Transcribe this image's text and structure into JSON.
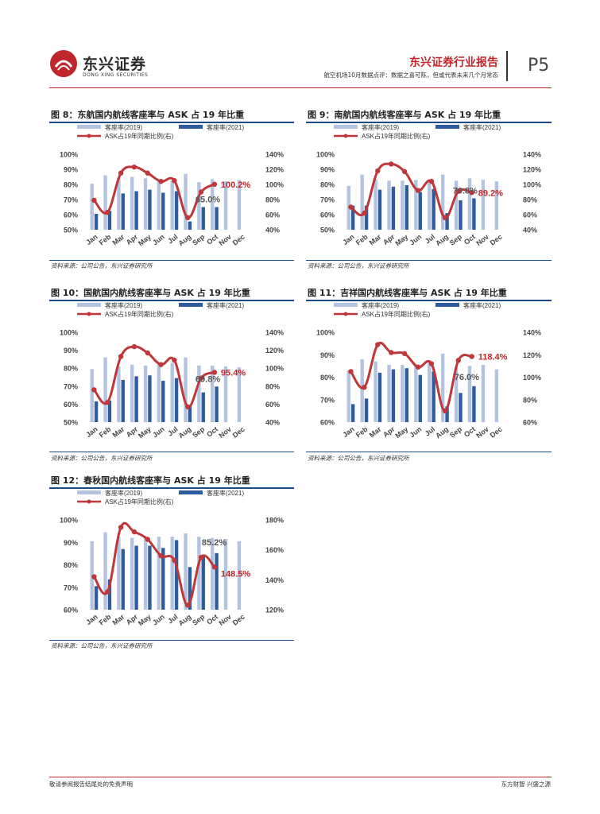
{
  "header": {
    "logo_text": "东兴证券",
    "logo_sub": "DONG XING SECURITIES",
    "report_title": "东兴证券行业报告",
    "report_sub": "航空机场10月数据点评：数据之喜可陈，但或代表未来几个月常态",
    "page": "P5"
  },
  "footer": {
    "left": "敬请参阅报告结尾处的免责声明",
    "right": "东方财智  兴盛之源"
  },
  "colors": {
    "light_bar": "#b4c3df",
    "dark_bar": "#2e5c9f",
    "line": "#c0373a",
    "brand_red": "#c0272d"
  },
  "legend": {
    "s2019": "客座率(2019)",
    "s2021": "客座率(2021)",
    "ratio": "ASK占19年同期比例(右)"
  },
  "months": [
    "Jan",
    "Feb",
    "Mar",
    "Apr",
    "May",
    "Jun",
    "Jul",
    "Aug",
    "Sep",
    "Oct",
    "Nov",
    "Dec"
  ],
  "figures": [
    {
      "title": "图 8：东航国内航线客座率与 ASK 占 19 年比重",
      "source": "资料来源：公司公告，东兴证券研究所"
    },
    {
      "title": "图 9：南航国内航线客座率与 ASK 占 19 年比重",
      "source": "资料来源：公司公告，东兴证券研究所"
    },
    {
      "title": "图 10：国航国内航线客座率与 ASK 占 19 年比重",
      "source": "资料来源：公司公告，东兴证券研究所"
    },
    {
      "title": "图 11：吉祥国内航线客座率与 ASK 占 19 年比重",
      "source": "资料来源：公司公告，东兴证券研究所"
    },
    {
      "title": "图 12：春秋国内航线客座率与 ASK 占 19 年比重",
      "source": "资料来源：公司公告，东兴证券研究所"
    }
  ],
  "chart_data": [
    {
      "type": "bar",
      "title": "图 8：东航国内航线客座率与 ASK 占 19 年比重",
      "categories": [
        "Jan",
        "Feb",
        "Mar",
        "Apr",
        "May",
        "Jun",
        "Jul",
        "Aug",
        "Sep",
        "Oct",
        "Nov",
        "Dec"
      ],
      "series": [
        {
          "name": "客座率(2019)",
          "values": [
            80.5,
            86,
            84.5,
            85,
            84,
            82,
            82.5,
            87,
            81.5,
            83.5,
            82,
            83
          ]
        },
        {
          "name": "客座率(2021)",
          "values": [
            60.5,
            62.5,
            74,
            75.5,
            76.5,
            74.5,
            75.5,
            55.5,
            65,
            65,
            null,
            null
          ]
        },
        {
          "name": "ASK占19年同期比例(右)",
          "axis": "right",
          "type": "line",
          "values": [
            79,
            63,
            115,
            123,
            115,
            104,
            105,
            56,
            90,
            100.2,
            null,
            null
          ]
        }
      ],
      "ylim": [
        50,
        100
      ],
      "y2lim": [
        40,
        140
      ],
      "yticks": [
        "50%",
        "60%",
        "70%",
        "80%",
        "90%",
        "100%"
      ],
      "y2ticks": [
        "40%",
        "60%",
        "80%",
        "100%",
        "120%",
        "140%"
      ],
      "labels": {
        "line_last": "100.2%",
        "bar_last": "65.0%"
      }
    },
    {
      "type": "bar",
      "title": "图 9：南航国内航线客座率与 ASK 占 19 年比重",
      "categories": [
        "Jan",
        "Feb",
        "Mar",
        "Apr",
        "May",
        "Jun",
        "Jul",
        "Aug",
        "Sep",
        "Oct",
        "Nov",
        "Dec"
      ],
      "series": [
        {
          "name": "客座率(2019)",
          "values": [
            79,
            86.5,
            83.5,
            82.5,
            82.5,
            83,
            83,
            86.5,
            82.5,
            84,
            83,
            82
          ]
        },
        {
          "name": "客座率(2021)",
          "values": [
            66,
            66,
            76.5,
            78.5,
            79.5,
            75,
            77,
            61,
            69.5,
            70.8,
            null,
            null
          ]
        },
        {
          "name": "ASK占19年同期比例(右)",
          "axis": "right",
          "type": "line",
          "values": [
            70,
            62,
            118,
            127,
            117,
            92,
            104,
            56,
            91,
            89.2,
            null,
            null
          ]
        }
      ],
      "ylim": [
        50,
        100
      ],
      "y2lim": [
        40,
        140
      ],
      "yticks": [
        "50%",
        "60%",
        "70%",
        "80%",
        "90%",
        "100%"
      ],
      "y2ticks": [
        "40%",
        "60%",
        "80%",
        "100%",
        "120%",
        "140%"
      ],
      "labels": {
        "line_last": "89.2%",
        "bar_last": "70.8%"
      }
    },
    {
      "type": "bar",
      "title": "图 10：国航国内航线客座率与 ASK 占 19 年比重",
      "categories": [
        "Jan",
        "Feb",
        "Mar",
        "Apr",
        "May",
        "Jun",
        "Jul",
        "Aug",
        "Sep",
        "Oct",
        "Nov",
        "Dec"
      ],
      "series": [
        {
          "name": "客座率(2019)",
          "values": [
            79.5,
            86,
            81,
            82,
            81.5,
            82,
            83,
            86,
            81.5,
            81.5,
            81,
            80.5
          ]
        },
        {
          "name": "客座率(2021)",
          "values": [
            61.5,
            62,
            73.5,
            75.5,
            76,
            73,
            74.5,
            59.5,
            66.5,
            69.8,
            null,
            null
          ]
        },
        {
          "name": "ASK占19年同期比例(右)",
          "axis": "right",
          "type": "line",
          "values": [
            76,
            62,
            113,
            124,
            117,
            104,
            109,
            57,
            89,
            95.4,
            null,
            null
          ]
        }
      ],
      "ylim": [
        50,
        100
      ],
      "y2lim": [
        40,
        140
      ],
      "yticks": [
        "50%",
        "60%",
        "70%",
        "80%",
        "90%",
        "100%"
      ],
      "y2ticks": [
        "40%",
        "60%",
        "80%",
        "100%",
        "120%",
        "140%"
      ],
      "labels": {
        "line_last": "95.4%",
        "bar_last": "69.8%"
      }
    },
    {
      "type": "bar",
      "title": "图 11：吉祥国内航线客座率与 ASK 占 19 年比重",
      "categories": [
        "Jan",
        "Feb",
        "Mar",
        "Apr",
        "May",
        "Jun",
        "Jul",
        "Aug",
        "Sep",
        "Oct",
        "Nov",
        "Dec"
      ],
      "series": [
        {
          "name": "客座率(2019)",
          "values": [
            83,
            88,
            87,
            85.5,
            85.5,
            85,
            87.5,
            90.5,
            84.5,
            85,
            85.5,
            83.5
          ]
        },
        {
          "name": "客座率(2021)",
          "values": [
            68,
            70.5,
            82,
            83.5,
            84,
            81,
            82.5,
            67,
            73,
            76,
            null,
            null
          ]
        },
        {
          "name": "ASK占19年同期比例(右)",
          "axis": "right",
          "type": "line",
          "values": [
            105,
            91,
            129,
            122,
            121,
            109,
            112,
            70,
            115,
            118.4,
            null,
            null
          ]
        }
      ],
      "ylim": [
        60,
        100
      ],
      "y2lim": [
        60,
        140
      ],
      "yticks": [
        "60%",
        "70%",
        "80%",
        "90%",
        "100%"
      ],
      "y2ticks": [
        "60%",
        "80%",
        "100%",
        "120%",
        "140%"
      ],
      "labels": {
        "line_last": "118.4%",
        "bar_last": "76.0%"
      }
    },
    {
      "type": "bar",
      "title": "图 12：春秋国内航线客座率与 ASK 占 19 年比重",
      "categories": [
        "Jan",
        "Feb",
        "Mar",
        "Apr",
        "May",
        "Jun",
        "Jul",
        "Aug",
        "Sep",
        "Oct",
        "Nov",
        "Dec"
      ],
      "series": [
        {
          "name": "客座率(2019)",
          "values": [
            90.5,
            94.5,
            92.5,
            92,
            92.5,
            92.5,
            92.5,
            94,
            92.5,
            92,
            91.5,
            90.5
          ]
        },
        {
          "name": "客座率(2021)",
          "values": [
            70.5,
            73.5,
            87,
            88.5,
            88.5,
            87.5,
            91,
            79,
            84.5,
            85.2,
            null,
            null
          ]
        },
        {
          "name": "ASK占19年同期比例(右)",
          "axis": "right",
          "type": "line",
          "values": [
            142,
            132,
            175,
            172,
            167,
            156,
            153,
            123,
            155,
            148.5,
            null,
            null
          ]
        }
      ],
      "ylim": [
        60,
        100
      ],
      "y2lim": [
        120,
        180
      ],
      "yticks": [
        "60%",
        "70%",
        "80%",
        "90%",
        "100%"
      ],
      "y2ticks": [
        "120%",
        "140%",
        "160%",
        "180%"
      ],
      "labels": {
        "line_last": "148.5%",
        "bar_last": "85.2%"
      }
    }
  ]
}
